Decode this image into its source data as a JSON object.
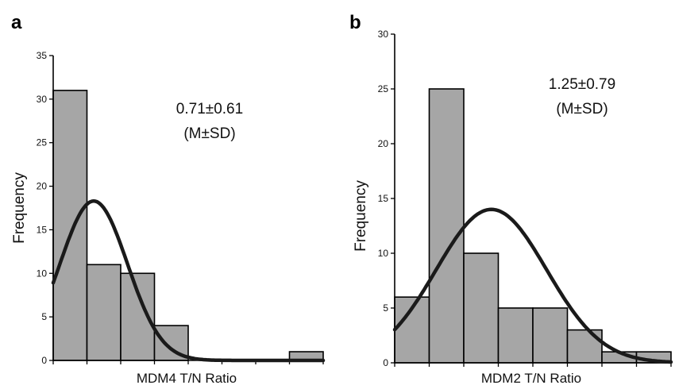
{
  "chart_data": [
    {
      "panel": "a",
      "type": "bar",
      "xlabel": "MDM4 T/N Ratio",
      "ylabel": "Frequency",
      "ylim": [
        0,
        35
      ],
      "yticks": [
        0,
        5,
        10,
        15,
        20,
        25,
        30,
        35
      ],
      "values": [
        31,
        11,
        10,
        4,
        0,
        0,
        0,
        1
      ],
      "annotation": [
        "0.71±0.61",
        "(M±SD)"
      ],
      "curve": {
        "type": "normal-fit",
        "peak": 18.3,
        "peak_bin": 1.2,
        "sd_bins": 1.0
      },
      "grid": false,
      "colors": {
        "bar": "#a6a6a6",
        "curve": "#1a1a1a"
      }
    },
    {
      "panel": "b",
      "type": "bar",
      "xlabel": "MDM2 T/N Ratio",
      "ylabel": "Frequency",
      "ylim": [
        0,
        30
      ],
      "yticks": [
        0,
        5,
        10,
        15,
        20,
        25,
        30
      ],
      "values": [
        6,
        25,
        10,
        5,
        5,
        3,
        1,
        1
      ],
      "annotation": [
        "1.25±0.79",
        "(M±SD)"
      ],
      "curve": {
        "type": "normal-fit",
        "peak": 14.0,
        "peak_bin": 2.8,
        "sd_bins": 1.6
      },
      "grid": false,
      "colors": {
        "bar": "#a6a6a6",
        "curve": "#1a1a1a"
      }
    }
  ]
}
